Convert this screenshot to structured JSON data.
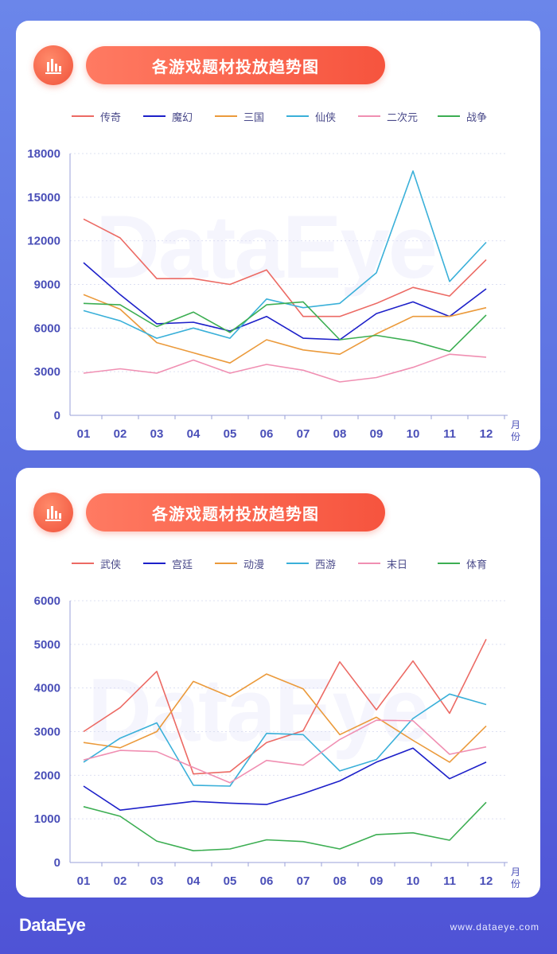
{
  "footer": {
    "logo": "DataEye",
    "url": "www.dataeye.com"
  },
  "watermark": "DataEye",
  "chart_data": [
    {
      "type": "line",
      "title": "各游戏题材投放趋势图",
      "xunit": "月份",
      "categories": [
        "01",
        "02",
        "03",
        "04",
        "05",
        "06",
        "07",
        "08",
        "09",
        "10",
        "11",
        "12"
      ],
      "ylim": [
        0,
        18000
      ],
      "yticks": [
        0,
        3000,
        6000,
        9000,
        12000,
        15000,
        18000
      ],
      "grid": true,
      "legend_position": "top",
      "series": [
        {
          "name": "传奇",
          "color": "#ec6a64",
          "values": [
            13500,
            12200,
            9400,
            9400,
            9000,
            10000,
            6800,
            6800,
            7700,
            8800,
            8200,
            10700
          ]
        },
        {
          "name": "魔幻",
          "color": "#1d20c9",
          "values": [
            10500,
            8300,
            6300,
            6400,
            5800,
            6800,
            5300,
            5200,
            7000,
            7800,
            6800,
            8700
          ]
        },
        {
          "name": "三国",
          "color": "#eb9a3b",
          "values": [
            8300,
            7300,
            5000,
            4300,
            3600,
            5200,
            4500,
            4200,
            5600,
            6800,
            6800,
            7400
          ]
        },
        {
          "name": "仙侠",
          "color": "#3ab0d9",
          "values": [
            7200,
            6500,
            5300,
            6000,
            5300,
            8000,
            7400,
            7700,
            9800,
            16800,
            9200,
            11900
          ]
        },
        {
          "name": "二次元",
          "color": "#f08fb2",
          "values": [
            2900,
            3200,
            2900,
            3800,
            2900,
            3500,
            3100,
            2300,
            2600,
            3300,
            4200,
            4000
          ]
        },
        {
          "name": "战争",
          "color": "#3cae52",
          "values": [
            7700,
            7600,
            6100,
            7100,
            5700,
            7600,
            7800,
            5200,
            5500,
            5100,
            4400,
            6900
          ]
        }
      ]
    },
    {
      "type": "line",
      "title": "各游戏题材投放趋势图",
      "xunit": "月份",
      "categories": [
        "01",
        "02",
        "03",
        "04",
        "05",
        "06",
        "07",
        "08",
        "09",
        "10",
        "11",
        "12"
      ],
      "ylim": [
        0,
        6000
      ],
      "yticks": [
        0,
        1000,
        2000,
        3000,
        4000,
        5000,
        6000
      ],
      "grid": true,
      "legend_position": "top",
      "series": [
        {
          "name": "武侠",
          "color": "#ec6a64",
          "values": [
            3000,
            3550,
            4380,
            2030,
            2080,
            2750,
            3020,
            4600,
            3500,
            4620,
            3420,
            5120
          ]
        },
        {
          "name": "宫廷",
          "color": "#1d20c9",
          "values": [
            1750,
            1200,
            1300,
            1400,
            1360,
            1330,
            1580,
            1870,
            2300,
            2620,
            1920,
            2300
          ]
        },
        {
          "name": "动漫",
          "color": "#eb9a3b",
          "values": [
            2750,
            2630,
            3000,
            4150,
            3800,
            4320,
            3980,
            2930,
            3330,
            2800,
            2300,
            3130
          ]
        },
        {
          "name": "西游",
          "color": "#3ab0d9",
          "values": [
            2300,
            2850,
            3200,
            1770,
            1750,
            2960,
            2930,
            2100,
            2360,
            3300,
            3860,
            3620
          ]
        },
        {
          "name": "末日",
          "color": "#f08fb2",
          "values": [
            2350,
            2570,
            2540,
            2180,
            1830,
            2340,
            2230,
            2820,
            3260,
            3250,
            2480,
            2650
          ]
        },
        {
          "name": "体育",
          "color": "#3cae52",
          "values": [
            1280,
            1060,
            490,
            270,
            310,
            520,
            480,
            310,
            640,
            680,
            510,
            1380
          ]
        }
      ]
    }
  ]
}
